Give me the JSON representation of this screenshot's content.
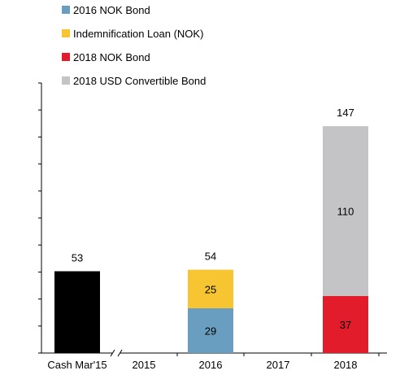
{
  "chart_data": {
    "type": "bar",
    "stacked": true,
    "categories": [
      "Cash Mar'15",
      "2015",
      "2016",
      "2017",
      "2018"
    ],
    "series": [
      {
        "name": "Cash",
        "color": "#000000",
        "values": [
          53,
          0,
          0,
          0,
          0
        ]
      },
      {
        "name": "2016 NOK Bond",
        "color": "#6a9ec0",
        "values": [
          0,
          0,
          29,
          0,
          0
        ]
      },
      {
        "name": "Indemnification Loan (NOK)",
        "color": "#f7c531",
        "values": [
          0,
          0,
          25,
          0,
          0
        ]
      },
      {
        "name": "2018 NOK Bond",
        "color": "#e21c2a",
        "values": [
          0,
          0,
          0,
          0,
          37
        ]
      },
      {
        "name": "2018 USD Convertible Bond",
        "color": "#c4c4c6",
        "values": [
          0,
          0,
          0,
          0,
          110
        ]
      }
    ],
    "segment_labels": {
      "2016 NOK Bond": [
        "",
        "",
        "29",
        "",
        ""
      ],
      "Indemnification Loan (NOK)": [
        "",
        "",
        "25",
        "",
        ""
      ],
      "2018 NOK Bond": [
        "",
        "",
        "",
        "",
        "37"
      ],
      "2018 USD Convertible Bond": [
        "",
        "",
        "",
        "",
        "110"
      ]
    },
    "totals": [
      "53",
      "",
      "54",
      "",
      "147"
    ],
    "legend": [
      "2016 NOK Bond",
      "Indemnification Loan (NOK)",
      "2018 NOK Bond",
      "2018 USD Convertible Bond"
    ],
    "legend_placement": "top-left",
    "ylim": [
      0,
      175
    ],
    "y_tick_count": 11,
    "axis_break": "between Cash Mar'15 and 2015",
    "grid": false
  }
}
